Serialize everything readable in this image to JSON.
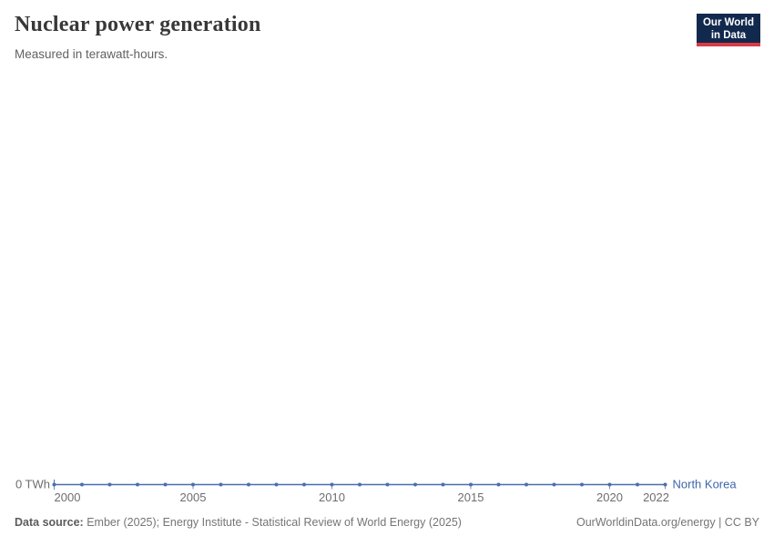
{
  "header": {
    "title": "Nuclear power generation",
    "subtitle": "Measured in terawatt-hours.",
    "logo": {
      "line1": "Our World",
      "line2": "in Data"
    }
  },
  "brand": {
    "logo_bg": "#12294e",
    "logo_accent": "#d93a46"
  },
  "chart_data": {
    "type": "line",
    "title": "Nuclear power generation",
    "ylabel": "terawatt-hours",
    "entity": "North Korea",
    "x": [
      2000,
      2001,
      2002,
      2003,
      2004,
      2005,
      2006,
      2007,
      2008,
      2009,
      2010,
      2011,
      2012,
      2013,
      2014,
      2015,
      2016,
      2017,
      2018,
      2019,
      2020,
      2021,
      2022
    ],
    "values": [
      0,
      0,
      0,
      0,
      0,
      0,
      0,
      0,
      0,
      0,
      0,
      0,
      0,
      0,
      0,
      0,
      0,
      0,
      0,
      0,
      0,
      0,
      0
    ],
    "x_ticks": [
      2000,
      2005,
      2010,
      2015,
      2020,
      2022
    ],
    "y_tick_label": "0 TWh",
    "ylim": [
      0,
      0
    ],
    "grid": false,
    "legend_position": "right-of-line",
    "line_color": "#4c6eae",
    "label_color": "#4065a8",
    "axis_tick_color": "#7d92bd"
  },
  "footer": {
    "source_bold": "Data source:",
    "source_rest": " Ember (2025); Energy Institute - Statistical Review of World Energy (2025)",
    "right_text": "OurWorldinData.org/energy | CC BY"
  }
}
